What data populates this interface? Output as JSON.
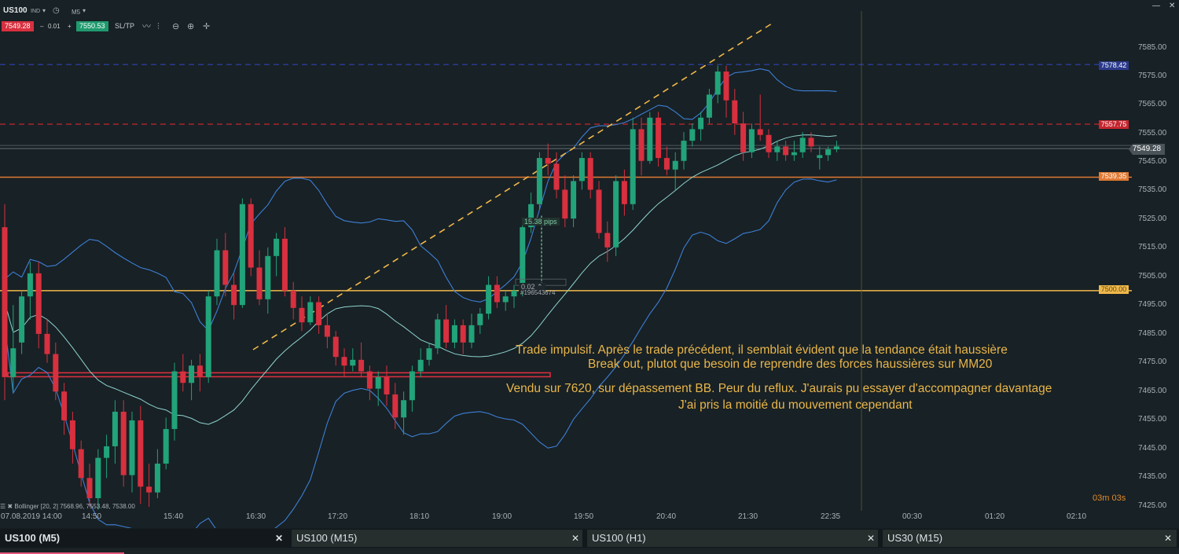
{
  "toolbar": {
    "symbol": "US100",
    "ind_label": "IND",
    "timeframe": "M5",
    "bid": "7549.28",
    "lot_minus": "–",
    "lot": "0.01",
    "lot_plus": "+",
    "ask": "7550.53",
    "sltp": "SL/TP"
  },
  "window": {
    "minimize": "—",
    "close": "✕"
  },
  "y_axis": [
    "7585.00",
    "7575.00",
    "7565.00",
    "7555.00",
    "7545.00",
    "7535.00",
    "7525.00",
    "7515.00",
    "7505.00",
    "7495.00",
    "7485.00",
    "7475.00",
    "7465.00",
    "7455.00",
    "7445.00",
    "7435.00",
    "7425.00"
  ],
  "x_axis": [
    "07.08.2019 14:00",
    "14:50",
    "15:40",
    "16:30",
    "17:20",
    "18:10",
    "19:00",
    "19:50",
    "20:40",
    "21:30",
    "22:35",
    "00:30",
    "01:20",
    "02:10"
  ],
  "price_tags": {
    "blue": "7578.42",
    "red": "7557.75",
    "current": "7549.28",
    "orange": "7539.35",
    "yellow": "7500.00"
  },
  "colors": {
    "bull": "#22a37a",
    "bear": "#d8303f",
    "band": "#3d7fd6",
    "mid": "#8fd3d1",
    "yellow": "#f0b84a",
    "orange": "#e07a34"
  },
  "chart_objects": {
    "pips_label": "15.38 pips",
    "order_lot": "0.02 ⌃",
    "order_id": "#196543674"
  },
  "annotations": [
    "Trade impulsif. Après le trade précédent, il semblait évident que la tendance était haussière",
    "Break out, plutot que besoin de reprendre des forces haussières sur MM20",
    "Vendu sur 7620, sur dépassement BB. Peur du reflux. J'aurais pu essayer d'accompagner davantage",
    "J'ai pris la moitié du mouvement cependant"
  ],
  "countdown": "03m 03s",
  "bollinger": "☰ ✖ Bollinger [20, 2] 7568.96, 7553.48, 7538.00",
  "tabs": [
    {
      "label": "US100 (M5)",
      "close": "✕"
    },
    {
      "label": "US100 (M15)",
      "close": "✕"
    },
    {
      "label": "US100 (H1)",
      "close": "✕"
    },
    {
      "label": "US30 (M15)",
      "close": "✕"
    }
  ],
  "chart_data": {
    "type": "candlestick",
    "symbol": "US100",
    "timeframe": "M5",
    "ylim": [
      7420,
      7592
    ],
    "candles": [
      [
        7522,
        7530,
        7462,
        7470
      ],
      [
        7470,
        7495,
        7465,
        7480
      ],
      [
        7482,
        7500,
        7478,
        7498
      ],
      [
        7498,
        7510,
        7490,
        7506
      ],
      [
        7506,
        7510,
        7480,
        7485
      ],
      [
        7485,
        7490,
        7475,
        7478
      ],
      [
        7478,
        7482,
        7462,
        7465
      ],
      [
        7465,
        7468,
        7450,
        7455
      ],
      [
        7455,
        7458,
        7440,
        7445
      ],
      [
        7445,
        7448,
        7432,
        7435
      ],
      [
        7435,
        7440,
        7425,
        7428
      ],
      [
        7428,
        7445,
        7424,
        7442
      ],
      [
        7442,
        7450,
        7435,
        7446
      ],
      [
        7446,
        7462,
        7440,
        7458
      ],
      [
        7458,
        7462,
        7432,
        7436
      ],
      [
        7436,
        7458,
        7430,
        7455
      ],
      [
        7455,
        7460,
        7426,
        7432
      ],
      [
        7432,
        7440,
        7425,
        7430
      ],
      [
        7430,
        7445,
        7428,
        7440
      ],
      [
        7440,
        7456,
        7438,
        7452
      ],
      [
        7452,
        7475,
        7448,
        7472
      ],
      [
        7472,
        7478,
        7465,
        7468
      ],
      [
        7468,
        7476,
        7462,
        7474
      ],
      [
        7474,
        7478,
        7465,
        7470
      ],
      [
        7470,
        7500,
        7468,
        7498
      ],
      [
        7498,
        7518,
        7495,
        7514
      ],
      [
        7514,
        7520,
        7498,
        7502
      ],
      [
        7502,
        7506,
        7490,
        7495
      ],
      [
        7495,
        7532,
        7494,
        7530
      ],
      [
        7530,
        7532,
        7505,
        7508
      ],
      [
        7508,
        7514,
        7495,
        7497
      ],
      [
        7497,
        7515,
        7492,
        7512
      ],
      [
        7512,
        7520,
        7505,
        7518
      ],
      [
        7518,
        7522,
        7498,
        7500
      ],
      [
        7500,
        7503,
        7490,
        7494
      ],
      [
        7494,
        7498,
        7486,
        7489
      ],
      [
        7489,
        7498,
        7488,
        7496
      ],
      [
        7496,
        7498,
        7485,
        7488
      ],
      [
        7488,
        7492,
        7480,
        7484
      ],
      [
        7484,
        7486,
        7474,
        7477
      ],
      [
        7477,
        7480,
        7470,
        7474
      ],
      [
        7474,
        7480,
        7472,
        7476
      ],
      [
        7476,
        7482,
        7470,
        7472
      ],
      [
        7472,
        7474,
        7462,
        7466
      ],
      [
        7466,
        7472,
        7460,
        7470
      ],
      [
        7470,
        7474,
        7460,
        7464
      ],
      [
        7464,
        7468,
        7452,
        7456
      ],
      [
        7456,
        7465,
        7450,
        7462
      ],
      [
        7462,
        7474,
        7458,
        7472
      ],
      [
        7472,
        7480,
        7470,
        7476
      ],
      [
        7476,
        7482,
        7474,
        7480
      ],
      [
        7480,
        7492,
        7478,
        7490
      ],
      [
        7490,
        7495,
        7480,
        7482
      ],
      [
        7482,
        7490,
        7480,
        7488
      ],
      [
        7488,
        7490,
        7478,
        7482
      ],
      [
        7482,
        7492,
        7480,
        7488
      ],
      [
        7488,
        7494,
        7485,
        7492
      ],
      [
        7492,
        7505,
        7490,
        7502
      ],
      [
        7502,
        7505,
        7494,
        7496
      ],
      [
        7496,
        7500,
        7493,
        7498
      ],
      [
        7498,
        7502,
        7494,
        7500
      ],
      [
        7500,
        7525,
        7498,
        7522
      ],
      [
        7522,
        7534,
        7520,
        7530
      ],
      [
        7530,
        7548,
        7528,
        7546
      ],
      [
        7546,
        7551,
        7540,
        7544
      ],
      [
        7544,
        7548,
        7532,
        7535
      ],
      [
        7535,
        7540,
        7522,
        7525
      ],
      [
        7525,
        7540,
        7522,
        7538
      ],
      [
        7538,
        7548,
        7535,
        7546
      ],
      [
        7546,
        7548,
        7532,
        7535
      ],
      [
        7535,
        7538,
        7518,
        7520
      ],
      [
        7520,
        7524,
        7510,
        7515
      ],
      [
        7515,
        7540,
        7512,
        7538
      ],
      [
        7538,
        7542,
        7526,
        7530
      ],
      [
        7530,
        7560,
        7528,
        7556
      ],
      [
        7556,
        7560,
        7540,
        7545
      ],
      [
        7545,
        7562,
        7544,
        7560
      ],
      [
        7560,
        7562,
        7543,
        7546
      ],
      [
        7546,
        7550,
        7540,
        7542
      ],
      [
        7542,
        7548,
        7535,
        7545
      ],
      [
        7545,
        7555,
        7542,
        7552
      ],
      [
        7552,
        7558,
        7550,
        7556
      ],
      [
        7556,
        7562,
        7552,
        7560
      ],
      [
        7560,
        7570,
        7558,
        7568
      ],
      [
        7568,
        7578,
        7565,
        7576
      ],
      [
        7576,
        7578,
        7560,
        7566
      ],
      [
        7566,
        7570,
        7554,
        7558
      ],
      [
        7558,
        7562,
        7545,
        7548
      ],
      [
        7548,
        7558,
        7546,
        7556
      ],
      [
        7556,
        7568,
        7552,
        7554
      ],
      [
        7554,
        7556,
        7546,
        7548
      ],
      [
        7548,
        7552,
        7545,
        7550
      ],
      [
        7550,
        7552,
        7545,
        7547
      ],
      [
        7547,
        7552,
        7545,
        7548
      ],
      [
        7548,
        7555,
        7546,
        7553
      ],
      [
        7553,
        7555,
        7548,
        7550
      ],
      [
        7546,
        7550,
        7542,
        7547
      ],
      [
        7547,
        7550,
        7545,
        7549
      ],
      [
        7549,
        7552,
        7548,
        7550
      ]
    ],
    "lines": {
      "blue_dashed": 7578.42,
      "red_dashed": 7557.75,
      "orange": 7539.35,
      "yellow": 7500.0,
      "current": 7549.28
    }
  }
}
